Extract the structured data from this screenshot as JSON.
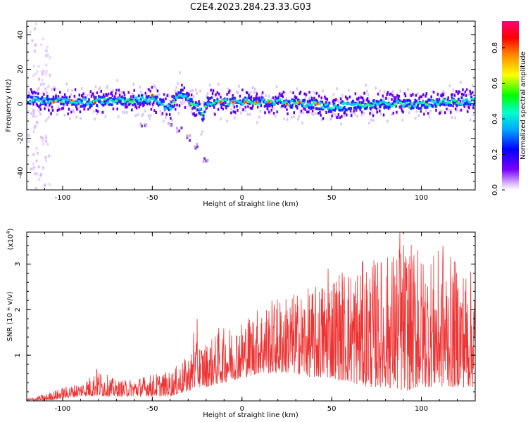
{
  "title": "C2E4.2023.284.23.33.G03",
  "chart_data": [
    {
      "type": "heatmap",
      "xlabel": "Height of straight line (km)",
      "ylabel": "Frequency (Hz)",
      "xlim": [
        -120,
        130
      ],
      "ylim": [
        -50,
        48
      ],
      "xticks": [
        "-100",
        "-50",
        "0",
        "50",
        "100"
      ],
      "xtick_values": [
        -100,
        -50,
        0,
        50,
        100
      ],
      "yticks": [
        "-40",
        "-20",
        "0",
        "20",
        "40"
      ],
      "ytick_values": [
        -40,
        -20,
        0,
        20,
        40
      ],
      "colorbar": {
        "label": "Normalized spectral amplitude",
        "range": [
          0,
          0.95
        ],
        "ticks": [
          "0.0",
          "0.2",
          "0.4",
          "0.6",
          "0.8"
        ],
        "tick_values": [
          0.0,
          0.2,
          0.4,
          0.6,
          0.8
        ],
        "colormap": "hsv-reversed"
      },
      "band_center_hz": [
        {
          "x": -118,
          "y": 2
        },
        {
          "x": -110,
          "y": 2
        },
        {
          "x": -100,
          "y": 1.5
        },
        {
          "x": -90,
          "y": 1
        },
        {
          "x": -80,
          "y": 1.5
        },
        {
          "x": -70,
          "y": 2
        },
        {
          "x": -60,
          "y": 2
        },
        {
          "x": -50,
          "y": 3
        },
        {
          "x": -45,
          "y": 0
        },
        {
          "x": -40,
          "y": -3
        },
        {
          "x": -35,
          "y": 6
        },
        {
          "x": -30,
          "y": 3
        },
        {
          "x": -25,
          "y": -2
        },
        {
          "x": -22,
          "y": -7
        },
        {
          "x": -20,
          "y": 1
        },
        {
          "x": -10,
          "y": 1
        },
        {
          "x": 0,
          "y": 1
        },
        {
          "x": 10,
          "y": 1
        },
        {
          "x": 20,
          "y": 1
        },
        {
          "x": 30,
          "y": 0
        },
        {
          "x": 40,
          "y": 0
        },
        {
          "x": 50,
          "y": -2
        },
        {
          "x": 60,
          "y": -1
        },
        {
          "x": 70,
          "y": -1
        },
        {
          "x": 80,
          "y": 0
        },
        {
          "x": 90,
          "y": 0
        },
        {
          "x": 100,
          "y": -1
        },
        {
          "x": 110,
          "y": 1
        },
        {
          "x": 120,
          "y": 1
        },
        {
          "x": 130,
          "y": 2
        }
      ],
      "hot_spots": [
        {
          "x": -105,
          "y": 1
        },
        {
          "x": -95,
          "y": 2
        },
        {
          "x": -82,
          "y": 1
        },
        {
          "x": -50,
          "y": 5
        },
        {
          "x": -12,
          "y": 1
        },
        {
          "x": -5,
          "y": 1
        },
        {
          "x": 2,
          "y": 1
        },
        {
          "x": 8,
          "y": 1
        },
        {
          "x": 15,
          "y": 1
        },
        {
          "x": 25,
          "y": 0
        },
        {
          "x": 32,
          "y": 1
        },
        {
          "x": 42,
          "y": 0
        }
      ],
      "side_trail": [
        {
          "x": -55,
          "y": -13
        },
        {
          "x": -40,
          "y": -12
        },
        {
          "x": -35,
          "y": -15
        },
        {
          "x": -30,
          "y": -20
        },
        {
          "x": -25,
          "y": -25
        },
        {
          "x": -20,
          "y": -33
        }
      ]
    },
    {
      "type": "line",
      "xlabel": "Height of straight line (km)",
      "ylabel": "SNR (10 * v/v)",
      "multiplier": "(x10",
      "multiplier_exp": "4",
      "multiplier_close": ")",
      "xlim": [
        -120,
        130
      ],
      "ylim": [
        0,
        3.7
      ],
      "xticks": [
        "-100",
        "-50",
        "0",
        "50",
        "100"
      ],
      "xtick_values": [
        -100,
        -50,
        0,
        50,
        100
      ],
      "yticks": [
        "1",
        "2",
        "3"
      ],
      "ytick_values": [
        1,
        2,
        3
      ],
      "color": "#ee3333",
      "series": [
        {
          "envelope_x": [
            -120,
            -110,
            -100,
            -90,
            -80,
            -70,
            -60,
            -50,
            -40,
            -30,
            -25,
            -20,
            -10,
            0,
            10,
            20,
            30,
            40,
            50,
            60,
            70,
            80,
            90,
            100,
            110,
            120,
            130
          ],
          "envelope_max": [
            0.05,
            0.15,
            0.3,
            0.4,
            0.7,
            0.45,
            0.5,
            0.6,
            0.65,
            1.0,
            1.3,
            1.3,
            1.6,
            1.8,
            2.1,
            2.3,
            2.4,
            2.5,
            2.9,
            3.0,
            3.1,
            3.2,
            3.6,
            3.2,
            3.3,
            3.1,
            2.8
          ],
          "envelope_min": [
            0.0,
            0.0,
            0.05,
            0.1,
            0.1,
            0.1,
            0.1,
            0.1,
            0.1,
            0.2,
            0.3,
            0.3,
            0.4,
            0.5,
            0.6,
            0.6,
            0.6,
            0.5,
            0.5,
            0.4,
            0.3,
            0.3,
            0.2,
            0.3,
            0.3,
            0.3,
            0.3
          ],
          "peaks": [
            {
              "x": -81,
              "y": 0.7
            },
            {
              "x": -27,
              "y": 1.5
            },
            {
              "x": -25,
              "y": 1.8
            },
            {
              "x": -13,
              "y": 1.6
            },
            {
              "x": 48,
              "y": 2.9
            },
            {
              "x": 88,
              "y": 3.7
            },
            {
              "x": 98,
              "y": 3.3
            },
            {
              "x": 112,
              "y": 3.4
            }
          ]
        }
      ]
    }
  ]
}
